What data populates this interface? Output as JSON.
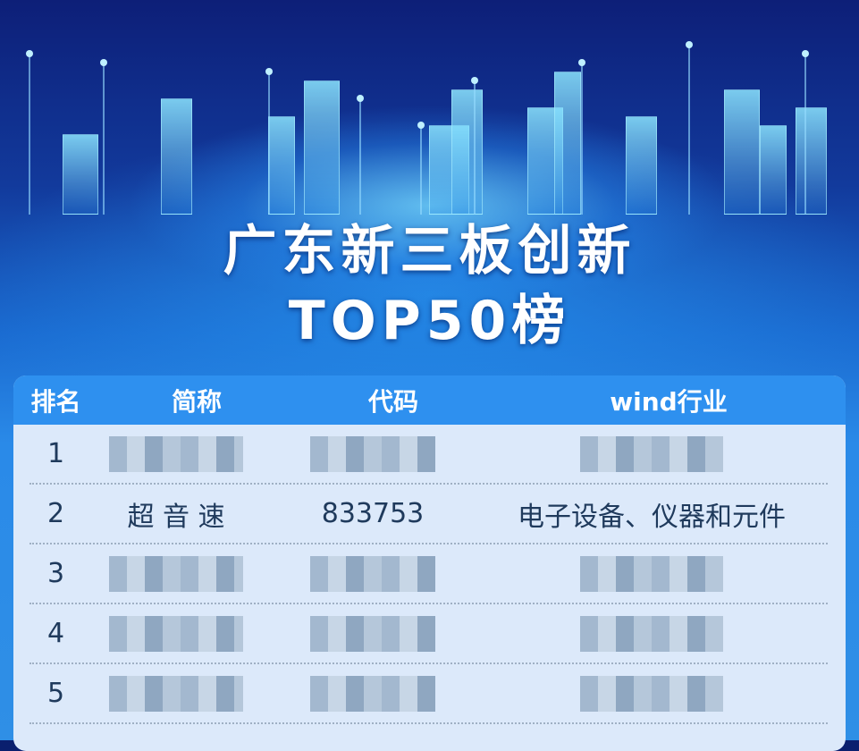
{
  "title": {
    "line1": "广东新三板创新",
    "line2": "TOP50榜"
  },
  "table": {
    "headers": [
      "排名",
      "简称",
      "代码",
      "wind行业"
    ],
    "rows": [
      {
        "rank": "1",
        "name": "",
        "code": "",
        "industry": "",
        "blurred": true
      },
      {
        "rank": "2",
        "name": "超 音 速",
        "code": "833753",
        "industry": "电子设备、仪器和元件",
        "blurred": false
      },
      {
        "rank": "3",
        "name": "",
        "code": "",
        "industry": "",
        "blurred": true
      },
      {
        "rank": "4",
        "name": "",
        "code": "",
        "industry": "",
        "blurred": true
      },
      {
        "rank": "5",
        "name": "",
        "code": "",
        "industry": "",
        "blurred": true
      }
    ]
  },
  "colors": {
    "header": "#2e90ef",
    "body": "#dce9fa",
    "text": "#1f3a5c"
  }
}
